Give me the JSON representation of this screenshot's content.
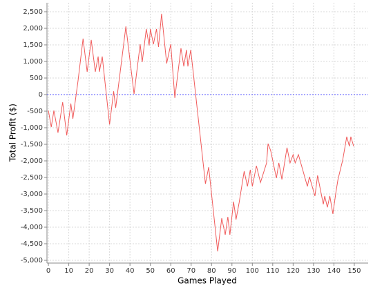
{
  "chart_data": {
    "type": "line",
    "xlabel": "Games Played",
    "ylabel": "Total Profit ($)",
    "xlim": [
      -0.7,
      156.8
    ],
    "ylim": [
      -5083,
      2771
    ],
    "xticks": [
      0,
      10,
      20,
      30,
      40,
      50,
      60,
      70,
      80,
      90,
      100,
      110,
      120,
      130,
      140,
      150
    ],
    "yticks": [
      {
        "value": -5000,
        "label": "-5,000"
      },
      {
        "value": -4500,
        "label": "-4,500"
      },
      {
        "value": -4000,
        "label": "-4,000"
      },
      {
        "value": -3500,
        "label": "-3,500"
      },
      {
        "value": -3000,
        "label": "-3,000"
      },
      {
        "value": -2500,
        "label": "-2,500"
      },
      {
        "value": -2000,
        "label": "-2,000"
      },
      {
        "value": -1500,
        "label": "-1,500"
      },
      {
        "value": -1000,
        "label": "-1,000"
      },
      -500,
      0,
      500,
      {
        "value": 1000,
        "label": "1,000"
      },
      {
        "value": 1500,
        "label": "1,500"
      },
      {
        "value": 2000,
        "label": "2,000"
      },
      {
        "value": 2500,
        "label": "2,500"
      }
    ],
    "grid": true,
    "reference_line": {
      "value": 0,
      "color": "#5555ff"
    },
    "x": [
      0,
      1.4,
      2.7,
      4.7,
      7,
      9,
      11,
      12,
      14.5,
      17,
      19,
      21,
      23,
      24.4,
      25,
      26.4,
      30,
      32,
      33,
      38,
      42,
      45,
      46,
      48,
      49.4,
      50,
      51.5,
      53,
      54,
      55.5,
      58,
      60,
      62,
      65,
      66.4,
      67.7,
      68.4,
      69.8,
      77,
      78.6,
      83,
      85,
      86.7,
      88,
      89,
      90.8,
      92,
      93.5,
      96,
      97.6,
      99,
      100,
      102,
      104,
      107,
      107.7,
      109,
      111.8,
      113,
      114.5,
      117,
      118.5,
      120,
      121,
      122.6,
      127,
      128,
      130.7,
      132,
      134.8,
      135.5,
      136.8,
      138,
      139.5,
      141,
      142,
      144.3,
      146.3,
      147.6,
      148.3,
      149.7
    ],
    "series": [
      {
        "name": "Total Profit",
        "color": "#f05a5a",
        "values": [
          -480,
          -980,
          -480,
          -1150,
          -230,
          -1230,
          -270,
          -730,
          400,
          1690,
          690,
          1650,
          690,
          1150,
          690,
          1150,
          -900,
          100,
          -400,
          2060,
          20,
          1520,
          980,
          1980,
          1480,
          1980,
          1520,
          1980,
          1440,
          2440,
          940,
          1520,
          -100,
          1400,
          850,
          1350,
          850,
          1350,
          -2690,
          -2190,
          -4730,
          -3730,
          -4230,
          -3690,
          -4230,
          -3230,
          -3770,
          -3270,
          -2310,
          -2770,
          -2270,
          -2770,
          -2150,
          -2650,
          -2060,
          -1480,
          -1690,
          -2520,
          -2060,
          -2560,
          -1600,
          -2060,
          -1810,
          -2060,
          -1810,
          -2770,
          -2480,
          -3060,
          -2440,
          -3310,
          -3060,
          -3400,
          -3060,
          -3600,
          -2940,
          -2560,
          -1980,
          -1270,
          -1560,
          -1270,
          -1560
        ]
      }
    ]
  }
}
